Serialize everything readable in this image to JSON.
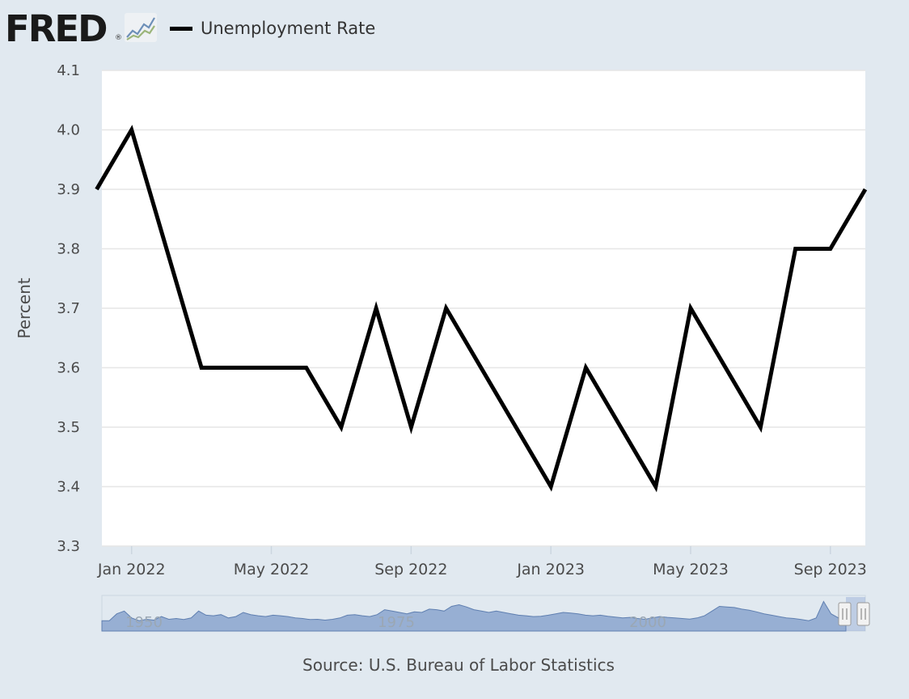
{
  "header": {
    "logo_text": "FRED",
    "logo_mark": "®",
    "legend_label": "Unemployment Rate"
  },
  "source_text": "Source: U.S. Bureau of Labor Statistics",
  "colors": {
    "background": "#e1e9f0",
    "plot_background": "#ffffff",
    "series_line": "#000000",
    "navigator_fill": "#8fa8cf",
    "gridline": "#e6e6e6"
  },
  "icons": [
    "fred-graph-icon"
  ],
  "chart_data": {
    "type": "line",
    "title": "",
    "xlabel": "",
    "ylabel": "Percent",
    "ylim": [
      3.3,
      4.1
    ],
    "yticks": [
      "3.3",
      "3.4",
      "3.5",
      "3.6",
      "3.7",
      "3.8",
      "3.9",
      "4.0",
      "4.1"
    ],
    "xticks": [
      "Jan 2022",
      "May 2022",
      "Sep 2022",
      "Jan 2023",
      "May 2023",
      "Sep 2023"
    ],
    "x_range": [
      "2021-12",
      "2023-10"
    ],
    "grid": true,
    "legend": "top-left",
    "series": [
      {
        "name": "Unemployment Rate",
        "x": [
          "2021-12",
          "2022-01",
          "2022-02",
          "2022-03",
          "2022-04",
          "2022-05",
          "2022-06",
          "2022-07",
          "2022-08",
          "2022-09",
          "2022-10",
          "2022-11",
          "2022-12",
          "2023-01",
          "2023-02",
          "2023-03",
          "2023-04",
          "2023-05",
          "2023-06",
          "2023-07",
          "2023-08",
          "2023-09",
          "2023-10"
        ],
        "values": [
          3.9,
          4.0,
          3.8,
          3.6,
          3.6,
          3.6,
          3.6,
          3.5,
          3.7,
          3.5,
          3.7,
          3.6,
          3.5,
          3.4,
          3.6,
          3.5,
          3.4,
          3.7,
          3.6,
          3.5,
          3.8,
          3.8,
          3.9
        ]
      }
    ],
    "navigator": {
      "labels": [
        "1950",
        "1975",
        "2000"
      ]
    }
  }
}
